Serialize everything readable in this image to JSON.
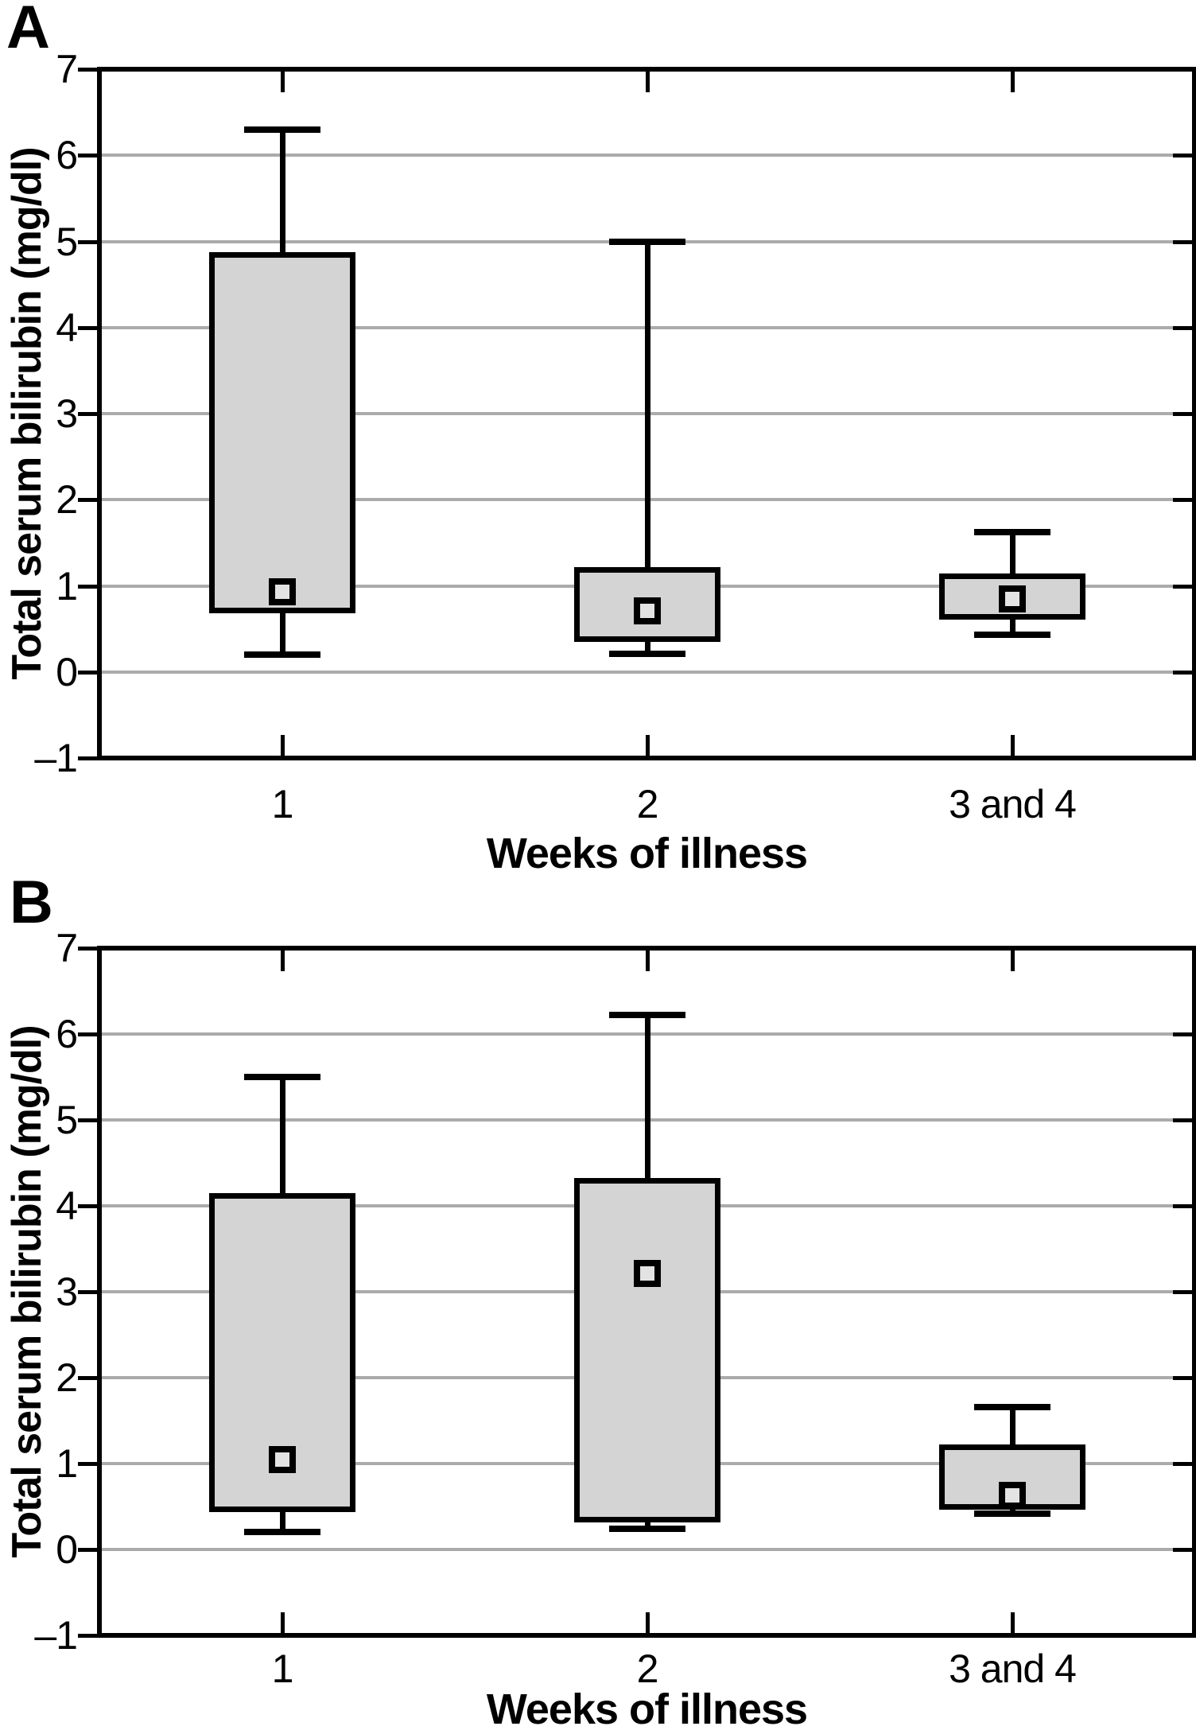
{
  "style": {
    "line_color": "#000000",
    "grid_color": "#ababab",
    "box_fill": "#d4d4d4",
    "marker_fill": "#e3e3e3",
    "background": "#ffffff"
  },
  "chart_data": [
    {
      "type": "boxplot",
      "panel_label": "A",
      "ylabel": "Total serum bilirubin (mg/dl)",
      "xlabel": "Weeks of illness",
      "ylim": [
        -1,
        7
      ],
      "ytick_values": [
        7,
        6,
        5,
        4,
        3,
        2,
        1,
        0,
        -1
      ],
      "ytick_labels": [
        "7",
        "6",
        "5",
        "4",
        "3",
        "2",
        "1",
        "0",
        "–1"
      ],
      "gridlines": [
        0,
        1,
        2,
        3,
        4,
        5,
        6
      ],
      "grid": true,
      "legend": "none",
      "categories": [
        "1",
        "2",
        "3 and 4"
      ],
      "boxes": [
        {
          "category": "1",
          "whisker_low": 0.2,
          "q1": 0.72,
          "median_marker": 0.93,
          "q3": 4.85,
          "whisker_high": 6.3
        },
        {
          "category": "2",
          "whisker_low": 0.21,
          "q1": 0.39,
          "median_marker": 0.71,
          "q3": 1.19,
          "whisker_high": 5.0
        },
        {
          "category": "3 and 4",
          "whisker_low": 0.43,
          "q1": 0.65,
          "median_marker": 0.85,
          "q3": 1.12,
          "whisker_high": 1.62
        }
      ]
    },
    {
      "type": "boxplot",
      "panel_label": "B",
      "ylabel": "Total serum bilirubin (mg/dl)",
      "xlabel": "Weeks of illness",
      "ylim": [
        -1,
        7
      ],
      "ytick_values": [
        7,
        6,
        5,
        4,
        3,
        2,
        1,
        0,
        -1
      ],
      "ytick_labels": [
        "7",
        "6",
        "5",
        "4",
        "3",
        "2",
        "1",
        "0",
        "–1"
      ],
      "gridlines": [
        0,
        1,
        2,
        3,
        4,
        5,
        6
      ],
      "grid": true,
      "legend": "none",
      "categories": [
        "1",
        "2",
        "3 and 4"
      ],
      "boxes": [
        {
          "category": "1",
          "whisker_low": 0.2,
          "q1": 0.47,
          "median_marker": 1.05,
          "q3": 4.12,
          "whisker_high": 5.5
        },
        {
          "category": "2",
          "whisker_low": 0.24,
          "q1": 0.36,
          "median_marker": 3.21,
          "q3": 4.3,
          "whisker_high": 6.22
        },
        {
          "category": "3 and 4",
          "whisker_low": 0.42,
          "q1": 0.5,
          "median_marker": 0.63,
          "q3": 1.19,
          "whisker_high": 1.66
        }
      ]
    }
  ]
}
